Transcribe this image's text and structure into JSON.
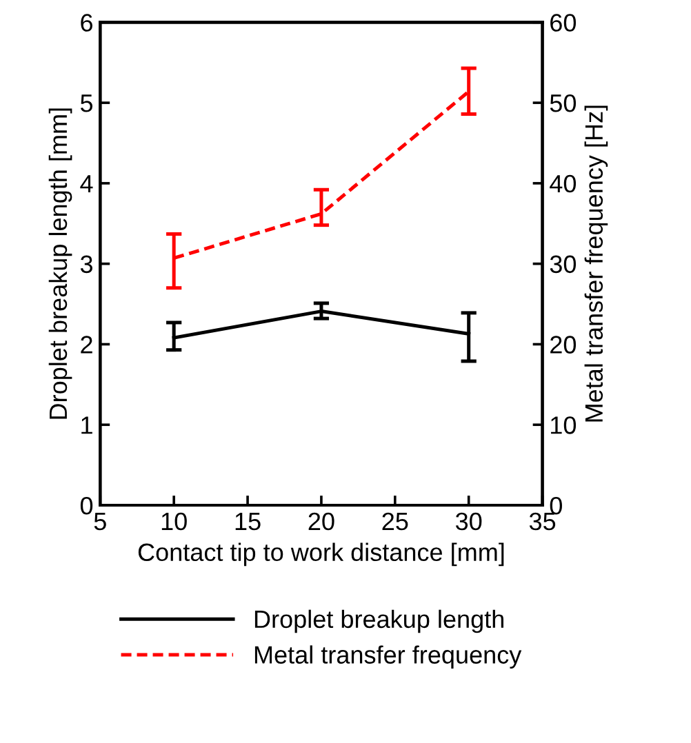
{
  "chart_data": {
    "type": "line",
    "xlabel": "Contact tip to work distance [mm]",
    "ylabel": "Droplet breakup length [mm]",
    "y2label": "Metal transfer frequency [Hz]",
    "x": [
      10,
      20,
      30
    ],
    "xlim": [
      5,
      35
    ],
    "xticks": [
      5,
      10,
      15,
      20,
      25,
      30,
      35
    ],
    "ylim": [
      0,
      6
    ],
    "yticks": [
      0,
      1,
      2,
      3,
      4,
      5,
      6
    ],
    "y2lim": [
      0,
      60
    ],
    "y2ticks": [
      0,
      10,
      20,
      30,
      40,
      50,
      60
    ],
    "series": [
      {
        "name": "Droplet breakup length",
        "color": "#000000",
        "line_style": "solid",
        "values": [
          2.08,
          2.41,
          2.13
        ],
        "errors": [
          [
            1.93,
            2.27
          ],
          [
            2.32,
            2.51
          ],
          [
            1.79,
            2.39
          ]
        ]
      },
      {
        "name": "Metal transfer frequency",
        "color": "#ff0000",
        "line_style": "dashed",
        "axis": "y2",
        "values": [
          30.7,
          36.2,
          51.4
        ],
        "errors": [
          [
            27.0,
            33.7
          ],
          [
            34.8,
            39.2
          ],
          [
            48.6,
            54.3
          ]
        ]
      }
    ],
    "grid": false,
    "legend": "bottom",
    "marker": "none"
  }
}
